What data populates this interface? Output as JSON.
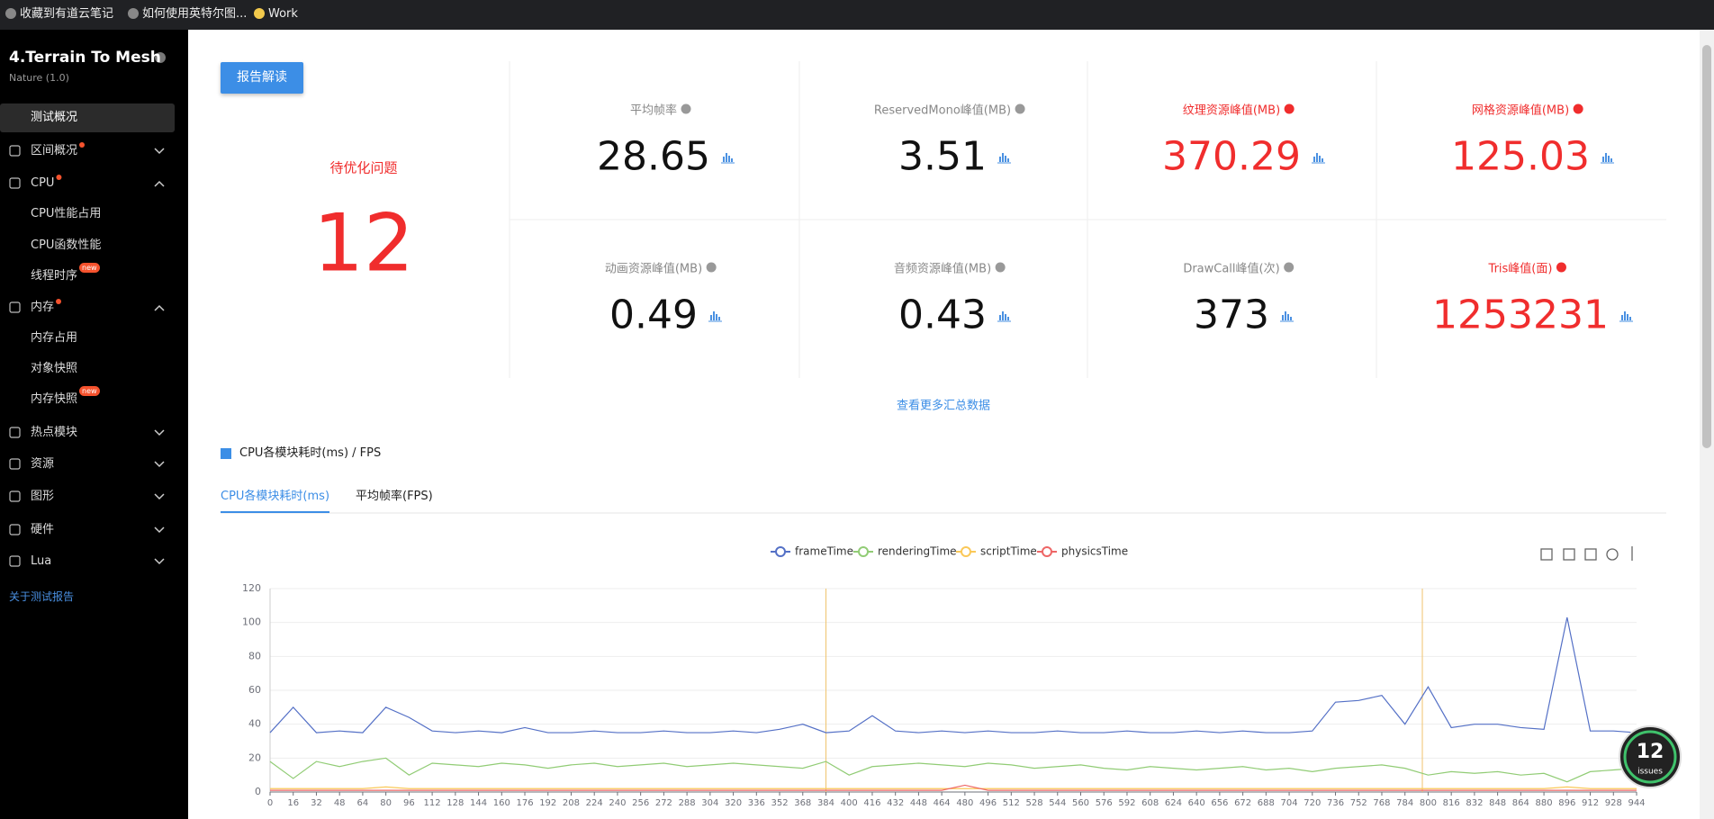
{
  "bookmarks": [
    "收藏到有道云笔记",
    "如何使用英特尔图...",
    "Work"
  ],
  "sidebar": {
    "title": "4.Terrain To Mesh",
    "subtitle": "Nature (1.0)",
    "menu": [
      {
        "label": "测试概况",
        "active": true
      },
      {
        "label": "区间概况",
        "dot": true,
        "chevron": "down"
      },
      {
        "label": "CPU",
        "dot": true,
        "chevron": "up"
      },
      {
        "label": "CPU性能占用",
        "sub": true
      },
      {
        "label": "CPU函数性能",
        "sub": true
      },
      {
        "label": "线程时序",
        "sub": true,
        "badge": "new"
      },
      {
        "label": "内存",
        "dot": true,
        "chevron": "up"
      },
      {
        "label": "内存占用",
        "sub": true
      },
      {
        "label": "对象快照",
        "sub": true
      },
      {
        "label": "内存快照",
        "sub": true,
        "badge": "new"
      },
      {
        "label": "热点模块",
        "chevron": "down"
      },
      {
        "label": "资源",
        "chevron": "down"
      },
      {
        "label": "图形",
        "chevron": "down"
      },
      {
        "label": "硬件",
        "chevron": "down"
      },
      {
        "label": "Lua",
        "chevron": "down"
      }
    ],
    "link": "关于测试报告"
  },
  "summary": {
    "button": "报告解读",
    "issues_label": "待优化问题",
    "issues_count": 12,
    "metrics": [
      {
        "label": "平均帧率",
        "value": 28.65,
        "alert": false
      },
      {
        "label": "ReservedMono峰值(MB)",
        "value": 3.51,
        "alert": false
      },
      {
        "label": "纹理资源峰值(MB)",
        "value": 370.29,
        "alert": true
      },
      {
        "label": "网格资源峰值(MB)",
        "value": 125.03,
        "alert": true
      },
      {
        "label": "动画资源峰值(MB)",
        "value": 0.49,
        "alert": false
      },
      {
        "label": "音频资源峰值(MB)",
        "value": 0.43,
        "alert": false
      },
      {
        "label": "DrawCall峰值(次)",
        "value": 373,
        "alert": false
      },
      {
        "label": "Tris峰值(面)",
        "value": 1253231,
        "alert": true
      }
    ],
    "more_link": "查看更多汇总数据"
  },
  "section_title": "CPU各模块耗时(ms) / FPS",
  "tabs": [
    {
      "label": "CPU各模块耗时(ms)",
      "active": true
    },
    {
      "label": "平均帧率(FPS)",
      "active": false
    }
  ],
  "chart_data": {
    "type": "line",
    "x": [
      0,
      16,
      32,
      48,
      64,
      80,
      96,
      112,
      128,
      144,
      160,
      176,
      192,
      208,
      224,
      240,
      256,
      272,
      288,
      304,
      320,
      336,
      352,
      368,
      384,
      400,
      416,
      432,
      448,
      464,
      480,
      496,
      512,
      528,
      544,
      560,
      576,
      592,
      608,
      624,
      640,
      656,
      672,
      688,
      704,
      720,
      736,
      752,
      768,
      784,
      800,
      816,
      832,
      848,
      864,
      880,
      896,
      912,
      928,
      944
    ],
    "series": [
      {
        "name": "frameTime",
        "color": "#5470c6",
        "values": [
          35,
          50,
          35,
          36,
          35,
          50,
          44,
          36,
          35,
          36,
          35,
          38,
          35,
          35,
          36,
          35,
          35,
          36,
          35,
          35,
          36,
          35,
          37,
          40,
          35,
          36,
          45,
          36,
          35,
          36,
          35,
          36,
          35,
          35,
          36,
          35,
          35,
          36,
          35,
          35,
          36,
          35,
          36,
          35,
          35,
          36,
          53,
          54,
          57,
          40,
          62,
          38,
          40,
          40,
          38,
          37,
          103,
          36,
          36,
          35
        ]
      },
      {
        "name": "renderingTime",
        "color": "#91cc75",
        "values": [
          18,
          8,
          18,
          15,
          18,
          20,
          10,
          17,
          16,
          15,
          17,
          16,
          14,
          16,
          17,
          15,
          16,
          17,
          15,
          16,
          17,
          16,
          15,
          14,
          18,
          10,
          15,
          16,
          17,
          16,
          15,
          17,
          16,
          14,
          15,
          16,
          14,
          13,
          15,
          14,
          13,
          14,
          15,
          13,
          14,
          12,
          14,
          15,
          16,
          14,
          10,
          12,
          11,
          12,
          10,
          11,
          6,
          12,
          13,
          14
        ]
      },
      {
        "name": "scriptTime",
        "color": "#fac858",
        "values": [
          2,
          2,
          2,
          2,
          2,
          3,
          2,
          2,
          2,
          2,
          2,
          2,
          2,
          2,
          2,
          2,
          2,
          2,
          2,
          2,
          2,
          2,
          2,
          2,
          2,
          2,
          2,
          2,
          2,
          2,
          2,
          2,
          2,
          2,
          2,
          2,
          2,
          2,
          2,
          2,
          2,
          2,
          2,
          2,
          2,
          2,
          2,
          2,
          2,
          2,
          2,
          2,
          2,
          2,
          2,
          2,
          3,
          2,
          2,
          2
        ]
      },
      {
        "name": "physicsTime",
        "color": "#ee6666",
        "values": [
          1,
          1,
          1,
          1,
          1,
          1,
          1,
          1,
          1,
          1,
          1,
          1,
          1,
          1,
          1,
          1,
          1,
          1,
          1,
          1,
          1,
          1,
          1,
          1,
          1,
          1,
          1,
          1,
          1,
          1,
          4,
          1,
          1,
          1,
          1,
          1,
          1,
          1,
          1,
          1,
          1,
          1,
          1,
          1,
          1,
          1,
          1,
          1,
          1,
          1,
          1,
          1,
          1,
          1,
          1,
          1,
          1,
          1,
          1,
          1
        ]
      }
    ],
    "marker_x": [
      384,
      796
    ],
    "xlim": [
      0,
      944
    ],
    "ylim": [
      0,
      120
    ],
    "xticks": [
      0,
      16,
      32,
      48,
      64,
      80,
      96,
      112,
      128,
      144,
      160,
      176,
      192,
      208,
      224,
      240,
      256,
      272,
      288,
      304,
      320,
      336,
      352,
      368,
      384,
      400,
      416,
      432,
      448,
      464,
      480,
      496,
      512,
      528,
      544,
      560,
      576,
      592,
      608,
      624,
      640,
      656,
      672,
      688,
      704,
      720,
      736,
      752,
      768,
      784,
      800,
      816,
      832,
      848,
      864,
      880,
      896,
      912,
      928,
      944
    ],
    "yticks": [
      0,
      20,
      40,
      60,
      80,
      100,
      120
    ],
    "grid": true
  },
  "issues_badge": {
    "count": 12,
    "label": "issues"
  }
}
